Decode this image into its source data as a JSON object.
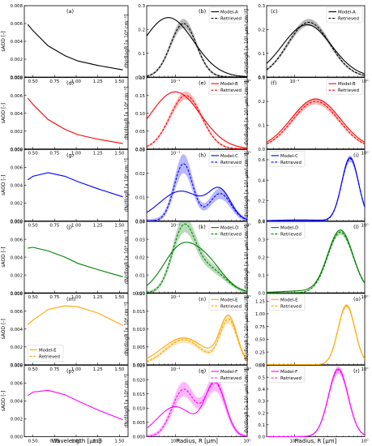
{
  "figure": {
    "col_xlabels": [
      "Wavelength [µm]",
      "Radius, R [µm]",
      "Radius, R [µm]"
    ],
    "col_ylabels": [
      "sAOD [-]",
      "dN/dlogR [x 10⁶ cm⁻³]",
      "dV/dlogR [x 10¹ µm³ cm⁻³]"
    ],
    "retrieved_label": "Retrieved",
    "wavelength_ticks": [
      "0.50",
      "0.75",
      "1.00",
      "1.25",
      "1.50"
    ],
    "radius_tick_labels": [
      "10⁻¹",
      "10⁰"
    ]
  },
  "chart_data": [
    {
      "panel": "a",
      "type": "line",
      "series": [
        {
          "name": "Model-A",
          "color": "#000000"
        }
      ],
      "ylim": [
        0,
        0.008
      ],
      "yticks": [
        0,
        0.002,
        0.004,
        0.006,
        0.008
      ],
      "x": [
        0.44,
        0.5,
        0.675,
        0.87,
        1.02,
        1.25,
        1.54
      ],
      "y": [
        0.0059,
        0.0052,
        0.0035,
        0.0024,
        0.0018,
        0.0013,
        0.0008
      ]
    },
    {
      "panel": "b",
      "type": "line",
      "series": [
        {
          "name": "Model-A",
          "color": "#000000"
        }
      ],
      "ylim": [
        0,
        0.3
      ],
      "yticks": [
        0,
        0.1,
        0.2,
        0.3
      ],
      "model": [
        {
          "m": 0.08,
          "s": 0.35,
          "a": 0.25
        }
      ],
      "retrieved": [
        {
          "m": 0.13,
          "s": 0.18,
          "a": 0.225
        }
      ],
      "band": 0.02
    },
    {
      "panel": "c",
      "type": "line",
      "series": [
        {
          "name": "Model-A",
          "color": "#000000"
        }
      ],
      "ylim": [
        0,
        0.3
      ],
      "yticks": [
        0,
        0.1,
        0.2,
        0.3
      ],
      "model": [
        {
          "m": 0.15,
          "s": 0.35,
          "a": 0.22
        }
      ],
      "retrieved": [
        {
          "m": 0.16,
          "s": 0.3,
          "a": 0.23
        }
      ],
      "band": 0.015
    },
    {
      "panel": "d",
      "type": "line",
      "series": [
        {
          "name": "Model-B",
          "color": "#ff0000"
        }
      ],
      "ylim": [
        0,
        0.008
      ],
      "yticks": [
        0,
        0.002,
        0.004,
        0.006,
        0.008
      ],
      "x": [
        0.44,
        0.5,
        0.675,
        0.87,
        1.02,
        1.25,
        1.54
      ],
      "y": [
        0.0057,
        0.005,
        0.0033,
        0.0022,
        0.0016,
        0.0011,
        0.0006
      ]
    },
    {
      "panel": "e",
      "type": "line",
      "series": [
        {
          "name": "Model-B",
          "color": "#ff0000"
        }
      ],
      "ylim": [
        0,
        0.2
      ],
      "yticks": [
        0,
        0.05,
        0.1,
        0.15,
        0.2
      ],
      "model": [
        {
          "m": 0.1,
          "s": 0.35,
          "a": 0.16
        }
      ],
      "retrieved": [
        {
          "m": 0.14,
          "s": 0.22,
          "a": 0.15
        }
      ],
      "band": 0.012
    },
    {
      "panel": "f",
      "type": "line",
      "series": [
        {
          "name": "Model-B",
          "color": "#ff0000"
        }
      ],
      "ylim": [
        0,
        0.3
      ],
      "yticks": [
        0,
        0.1,
        0.2,
        0.3
      ],
      "model": [
        {
          "m": 0.2,
          "s": 0.35,
          "a": 0.21
        }
      ],
      "retrieved": [
        {
          "m": 0.2,
          "s": 0.33,
          "a": 0.2
        }
      ],
      "band": 0.015
    },
    {
      "panel": "g",
      "type": "line",
      "series": [
        {
          "name": "Model-C",
          "color": "#0000ff"
        }
      ],
      "ylim": [
        0,
        0.008
      ],
      "yticks": [
        0,
        0.002,
        0.004,
        0.006,
        0.008
      ],
      "x": [
        0.44,
        0.5,
        0.675,
        0.87,
        1.02,
        1.25,
        1.54
      ],
      "y": [
        0.0046,
        0.005,
        0.0054,
        0.005,
        0.0044,
        0.0036,
        0.0027
      ]
    },
    {
      "panel": "h",
      "type": "line",
      "series": [
        {
          "name": "Model-C",
          "color": "#0000ff"
        }
      ],
      "ylim": [
        0,
        0.03
      ],
      "yticks": [
        0,
        0.01,
        0.02,
        0.03
      ],
      "model": [
        {
          "m": 0.12,
          "s": 0.3,
          "a": 0.0125
        },
        {
          "m": 0.42,
          "s": 0.15,
          "a": 0.0115
        }
      ],
      "retrieved": [
        {
          "m": 0.13,
          "s": 0.13,
          "a": 0.024
        },
        {
          "m": 0.42,
          "s": 0.15,
          "a": 0.0115
        }
      ],
      "band": 0.004
    },
    {
      "panel": "i",
      "type": "line",
      "series": [
        {
          "name": "Model-C",
          "color": "#0000ff"
        }
      ],
      "ylim": [
        0,
        0.7
      ],
      "yticks": [
        0,
        0.2,
        0.4,
        0.6
      ],
      "model": [
        {
          "m": 0.12,
          "s": 0.3,
          "a": 0.01
        },
        {
          "m": 0.62,
          "s": 0.12,
          "a": 0.62
        }
      ],
      "retrieved": [
        {
          "m": 0.62,
          "s": 0.12,
          "a": 0.61
        }
      ],
      "band": 0.03
    },
    {
      "panel": "j",
      "type": "line",
      "series": [
        {
          "name": "Model-D",
          "color": "#008000"
        }
      ],
      "ylim": [
        0,
        0.008
      ],
      "yticks": [
        0,
        0.002,
        0.004,
        0.006,
        0.008
      ],
      "x": [
        0.44,
        0.5,
        0.675,
        0.87,
        1.02,
        1.25,
        1.54
      ],
      "y": [
        0.005,
        0.0051,
        0.0047,
        0.004,
        0.0033,
        0.0026,
        0.0018
      ]
    },
    {
      "panel": "k",
      "type": "line",
      "series": [
        {
          "name": "Model-D",
          "color": "#008000"
        }
      ],
      "ylim": [
        0,
        0.04
      ],
      "yticks": [
        0,
        0.01,
        0.02,
        0.03,
        0.04
      ],
      "model": [
        {
          "m": 0.12,
          "s": 0.25,
          "a": 0.025
        },
        {
          "m": 0.3,
          "s": 0.22,
          "a": 0.013
        }
      ],
      "retrieved": [
        {
          "m": 0.13,
          "s": 0.16,
          "a": 0.035
        },
        {
          "m": 0.3,
          "s": 0.22,
          "a": 0.013
        }
      ],
      "band": 0.004
    },
    {
      "panel": "l",
      "type": "line",
      "series": [
        {
          "name": "Model-D",
          "color": "#008000"
        }
      ],
      "ylim": [
        0,
        0.4
      ],
      "yticks": [
        0,
        0.1,
        0.2,
        0.3,
        0.4
      ],
      "model": [
        {
          "m": 0.12,
          "s": 0.3,
          "a": 0.01
        },
        {
          "m": 0.45,
          "s": 0.18,
          "a": 0.35
        }
      ],
      "retrieved": [
        {
          "m": 0.45,
          "s": 0.18,
          "a": 0.34
        }
      ],
      "band": 0.015
    },
    {
      "panel": "m",
      "type": "line",
      "series": [
        {
          "name": "Model-E",
          "color": "#ffa500"
        }
      ],
      "ylim": [
        0,
        0.008
      ],
      "yticks": [
        0,
        0.002,
        0.004,
        0.006,
        0.008
      ],
      "x": [
        0.44,
        0.5,
        0.675,
        0.87,
        1.02,
        1.25,
        1.54
      ],
      "y": [
        0.0045,
        0.005,
        0.0062,
        0.0066,
        0.0065,
        0.0058,
        0.0044
      ]
    },
    {
      "panel": "n",
      "type": "line",
      "series": [
        {
          "name": "Model-E",
          "color": "#ffa500"
        }
      ],
      "ylim": [
        0,
        0.02
      ],
      "yticks": [
        0,
        0.005,
        0.01,
        0.015,
        0.02
      ],
      "model": [
        {
          "m": 0.13,
          "s": 0.3,
          "a": 0.0075
        },
        {
          "m": 0.55,
          "s": 0.12,
          "a": 0.013
        }
      ],
      "retrieved": [
        {
          "m": 0.13,
          "s": 0.25,
          "a": 0.007
        },
        {
          "m": 0.55,
          "s": 0.12,
          "a": 0.0125
        }
      ],
      "band": 0.0015
    },
    {
      "panel": "o",
      "type": "line",
      "series": [
        {
          "name": "Model-E",
          "color": "#ffa500"
        }
      ],
      "ylim": [
        0,
        1.4
      ],
      "yticks": [
        0,
        0.25,
        0.5,
        0.75,
        1,
        1.25
      ],
      "model": [
        {
          "m": 0.55,
          "s": 0.12,
          "a": 1.17
        }
      ],
      "retrieved": [
        {
          "m": 0.55,
          "s": 0.12,
          "a": 1.15
        }
      ],
      "band": 0.04
    },
    {
      "panel": "p",
      "type": "line",
      "series": [
        {
          "name": "Model-F",
          "color": "#ff00ff"
        }
      ],
      "ylim": [
        0,
        0.008
      ],
      "yticks": [
        0,
        0.002,
        0.004,
        0.006,
        0.008
      ],
      "x": [
        0.44,
        0.5,
        0.675,
        0.87,
        1.02,
        1.25,
        1.54
      ],
      "y": [
        0.0046,
        0.005,
        0.0052,
        0.0047,
        0.004,
        0.003,
        0.0019
      ]
    },
    {
      "panel": "q",
      "type": "line",
      "series": [
        {
          "name": "Model-F",
          "color": "#ff00ff"
        }
      ],
      "ylim": [
        0,
        0.025
      ],
      "yticks": [
        0,
        0.005,
        0.01,
        0.015,
        0.02,
        0.025
      ],
      "model": [
        {
          "m": 0.1,
          "s": 0.25,
          "a": 0.0105
        },
        {
          "m": 0.36,
          "s": 0.14,
          "a": 0.0185
        }
      ],
      "retrieved": [
        {
          "m": 0.13,
          "s": 0.16,
          "a": 0.0165
        },
        {
          "m": 0.36,
          "s": 0.14,
          "a": 0.0185
        }
      ],
      "band": 0.003
    },
    {
      "panel": "r",
      "type": "line",
      "series": [
        {
          "name": "Model-F",
          "color": "#ff00ff"
        }
      ],
      "ylim": [
        0,
        0.6
      ],
      "yticks": [
        0,
        0.1,
        0.2,
        0.3,
        0.4,
        0.5,
        0.6
      ],
      "model": [
        {
          "m": 0.42,
          "s": 0.14,
          "a": 0.57
        }
      ],
      "retrieved": [
        {
          "m": 0.42,
          "s": 0.14,
          "a": 0.56
        }
      ],
      "band": 0.03
    }
  ]
}
